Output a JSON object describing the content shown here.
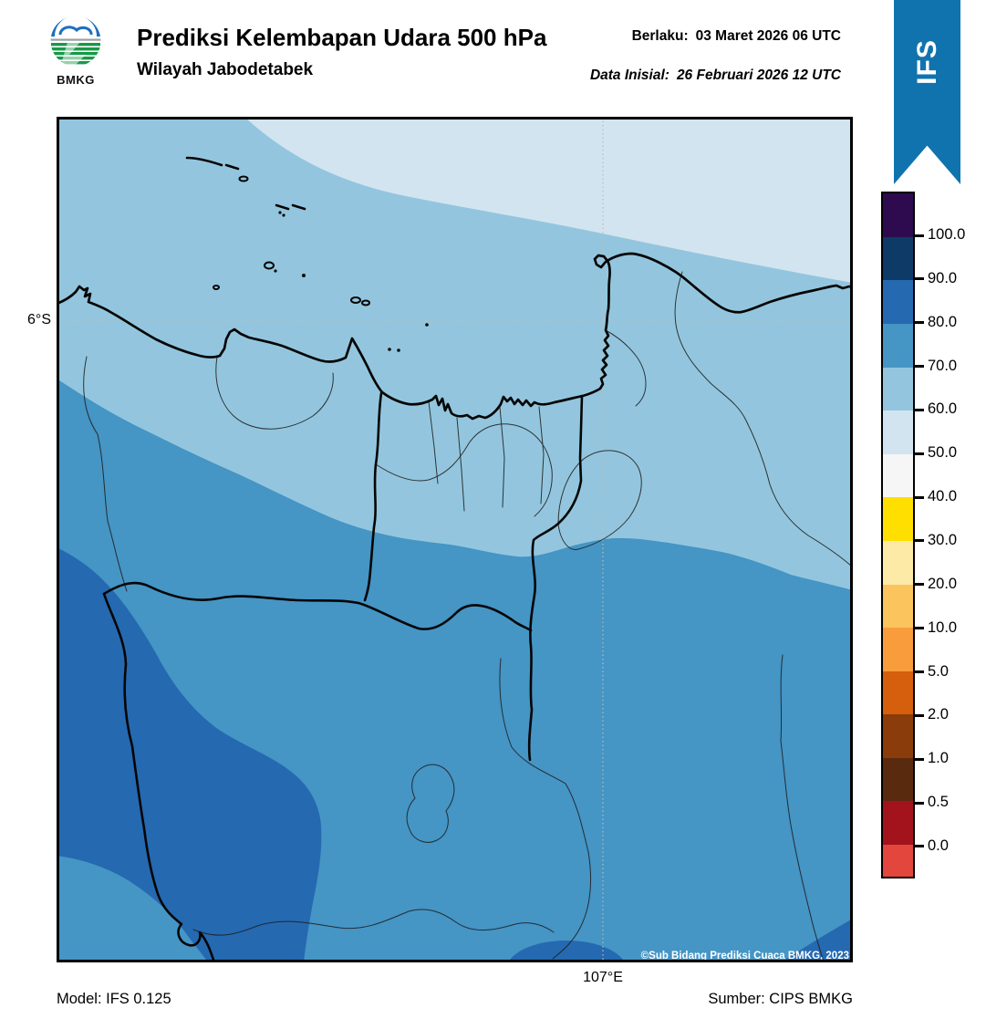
{
  "header": {
    "logo_text": "BMKG",
    "title": "Prediksi Kelembapan Udara 500 hPa",
    "subtitle": "Wilayah Jabodetabek",
    "berlaku_label": "Berlaku:",
    "berlaku_value": "03 Maret 2026 06 UTC",
    "inisial_label": "Data Inisial:",
    "inisial_value": "26 Februari 2026 12 UTC"
  },
  "ribbon": {
    "label": "IFS",
    "color": "#1173ae"
  },
  "map": {
    "lat_tick": "6°S",
    "lon_tick": "107°E",
    "copyright": "©Sub Bidang Prediksi Cuaca BMKG, 2023"
  },
  "colorbar": {
    "tick_labels": [
      "100.0",
      "90.0",
      "80.0",
      "70.0",
      "60.0",
      "50.0",
      "40.0",
      "30.0",
      "20.0",
      "10.0",
      "5.0",
      "2.0",
      "1.0",
      "0.5",
      "0.0"
    ],
    "segment_colors_top_to_bottom": [
      "#2e0a4e",
      "#0d3a66",
      "#2569b1",
      "#4595c5",
      "#93c6de",
      "#d3e4f1",
      "#f6f6f6",
      "#ffdf00",
      "#fdeaa6",
      "#fcc45c",
      "#f89c3c",
      "#d55f0d",
      "#8a3c0a",
      "#5a2a0f",
      "#a2131c",
      "#e2463c"
    ]
  },
  "footer": {
    "model": "Model: IFS 0.125",
    "source": "Sumber: CIPS BMKG"
  },
  "chart_data": {
    "type": "heatmap",
    "title": "Prediksi Kelembapan Udara 500 hPa",
    "subtitle": "Wilayah Jabodetabek",
    "valid_time": "03 Maret 2026 06 UTC",
    "initial_time": "26 Februari 2026 12 UTC",
    "model": "IFS 0.125",
    "source": "CIPS BMKG",
    "legend_levels": [
      0.0,
      0.5,
      1.0,
      2.0,
      5.0,
      10.0,
      20.0,
      30.0,
      40.0,
      50.0,
      60.0,
      70.0,
      80.0,
      90.0,
      100.0
    ],
    "gridlines": {
      "lat": "6°S",
      "lon": "107°E"
    },
    "visible_bands_on_map": [
      {
        "range": "50-60",
        "area": "far northeast corner of sea"
      },
      {
        "range": "60-70",
        "area": "northern sea and coastal strip including Jakarta"
      },
      {
        "range": "70-80",
        "area": "central and southern inland band"
      },
      {
        "range": "80-90",
        "area": "large southwest lobe plus two patches along the southern edge"
      }
    ]
  }
}
